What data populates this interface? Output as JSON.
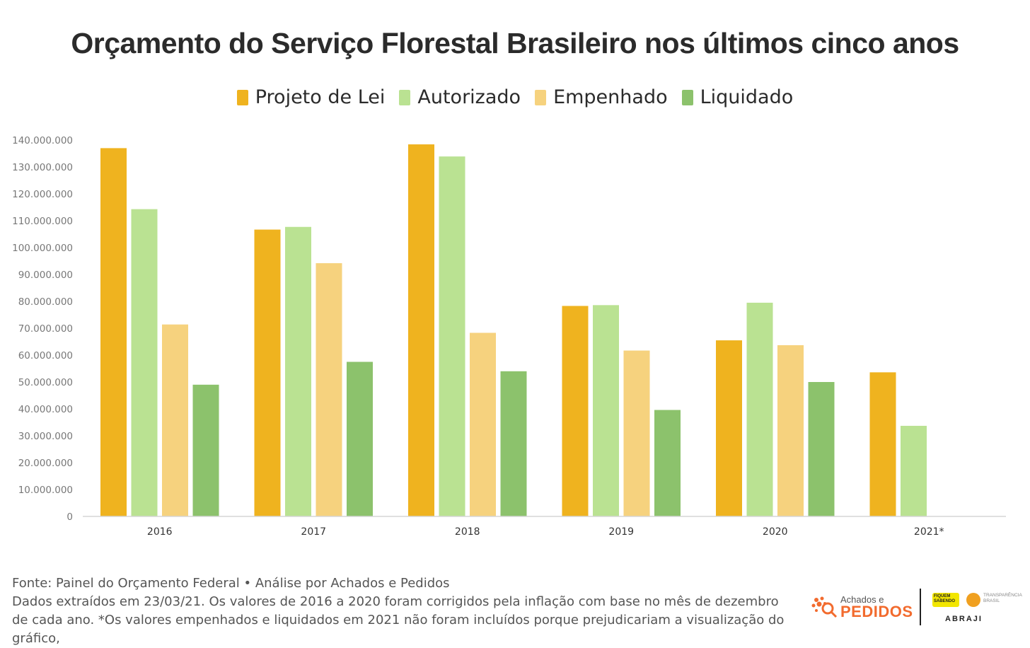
{
  "chart_data": {
    "type": "bar",
    "title": "Orçamento do Serviço Florestal Brasileiro nos últimos cinco anos",
    "categories": [
      "2016",
      "2017",
      "2018",
      "2019",
      "2020",
      "2021*"
    ],
    "series": [
      {
        "name": "Projeto de Lei",
        "color": "#efb31f",
        "values": [
          137000000,
          106700000,
          138400000,
          78300000,
          65500000,
          53600000
        ]
      },
      {
        "name": "Autorizado",
        "color": "#bae292",
        "values": [
          114300000,
          107700000,
          133900000,
          78600000,
          79500000,
          33700000
        ]
      },
      {
        "name": "Empenhado",
        "color": "#f6d27e",
        "values": [
          71400000,
          94200000,
          68300000,
          61700000,
          63700000,
          null
        ]
      },
      {
        "name": "Liquidado",
        "color": "#8cc26c",
        "values": [
          49000000,
          57500000,
          54000000,
          39600000,
          50000000,
          null
        ]
      }
    ],
    "ylim": [
      0,
      140000000
    ],
    "yticks": [
      0,
      10000000,
      20000000,
      30000000,
      40000000,
      50000000,
      60000000,
      70000000,
      80000000,
      90000000,
      100000000,
      110000000,
      120000000,
      130000000,
      140000000
    ],
    "ytick_labels": [
      "0",
      "10.000.000",
      "20.000.000",
      "30.000.000",
      "40.000.000",
      "50.000.000",
      "60.000.000",
      "70.000.000",
      "80.000.000",
      "90.000.000",
      "100.000.000",
      "110.000.000",
      "120.000.000",
      "130.000.000",
      "140.000.000"
    ],
    "legend": "top-center",
    "grid": false
  },
  "footer": {
    "source": "Fonte: Painel do Orçamento Federal • Análise por Achados e Pedidos",
    "note": "Dados extraídos em 23/03/21. Os valores de 2016 a 2020 foram corrigidos pela inflação com base no mês de dezembro de cada ano. *Os valores empenhados e liquidados em 2021 não foram incluídos porque prejudicariam a visualização do gráfico,"
  },
  "logos": {
    "achados_small": "Achados e",
    "achados_big": "PEDIDOS",
    "fiquem": "FIQUEM SABENDO",
    "transparencia": "TRANSPARÊNCIA BRASIL",
    "abraji": "ABRAJI"
  }
}
